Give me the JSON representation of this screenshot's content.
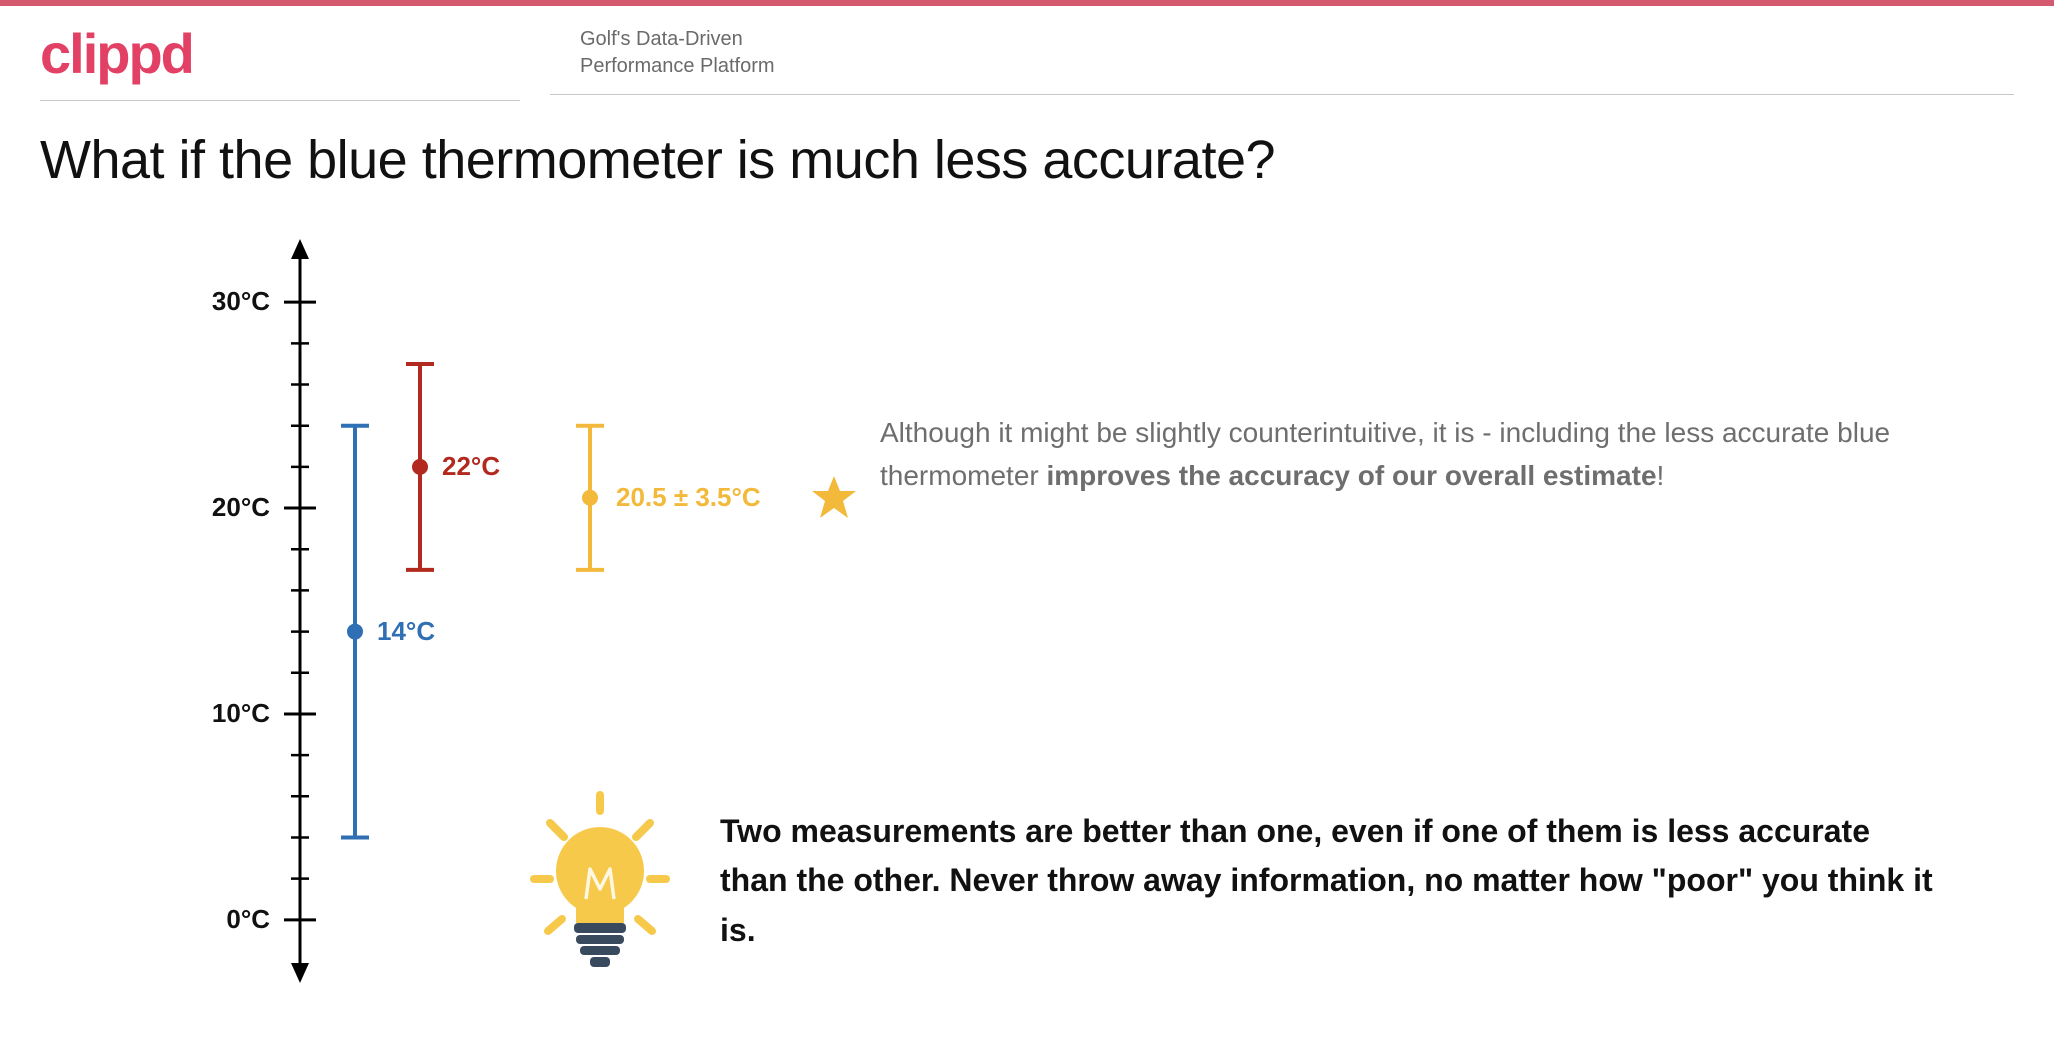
{
  "brand": {
    "logo_text": "clippd",
    "logo_color": "#e34065",
    "tagline_line1": "Golf's Data-Driven",
    "tagline_line2": "Performance Platform",
    "topbar_color": "#d65a6f"
  },
  "title": "What if the blue thermometer is much less accurate?",
  "chart": {
    "axis_color": "#000000",
    "ymin": -2,
    "ymax": 32,
    "tick_labels": [
      {
        "value": 0,
        "text": "0°C"
      },
      {
        "value": 10,
        "text": "10°C"
      },
      {
        "value": 20,
        "text": "20°C"
      },
      {
        "value": 30,
        "text": "30°C"
      }
    ],
    "minor_tick_step": 2,
    "series": [
      {
        "id": "blue",
        "x": 175,
        "mean": 14,
        "low": 4,
        "high": 24,
        "color": "#2f6fb3",
        "label": "14°C",
        "label_dx": 22
      },
      {
        "id": "red",
        "x": 240,
        "mean": 22,
        "low": 17,
        "high": 27,
        "color": "#b22a1f",
        "label": "22°C",
        "label_dx": 22
      },
      {
        "id": "yellow",
        "x": 410,
        "mean": 20.5,
        "low": 17,
        "high": 24,
        "color": "#f2b93b",
        "label": "20.5 ± 3.5°C",
        "label_dx": 26
      }
    ],
    "star_color": "#f2b93b"
  },
  "explain": {
    "pre": "Although it might be slightly counterintuitive, it is - including the less accurate blue thermometer ",
    "bold": "improves the accuracy of our overall estimate",
    "post": "!"
  },
  "takeaway": "Two measurements are better than one, even if one of them is less accurate than the other. Never throw away information, no matter how \"poor\" you think it is.",
  "bulb": {
    "glass_color": "#f6c94a",
    "ray_color": "#f6c94a",
    "base_color": "#3a4a5e"
  }
}
